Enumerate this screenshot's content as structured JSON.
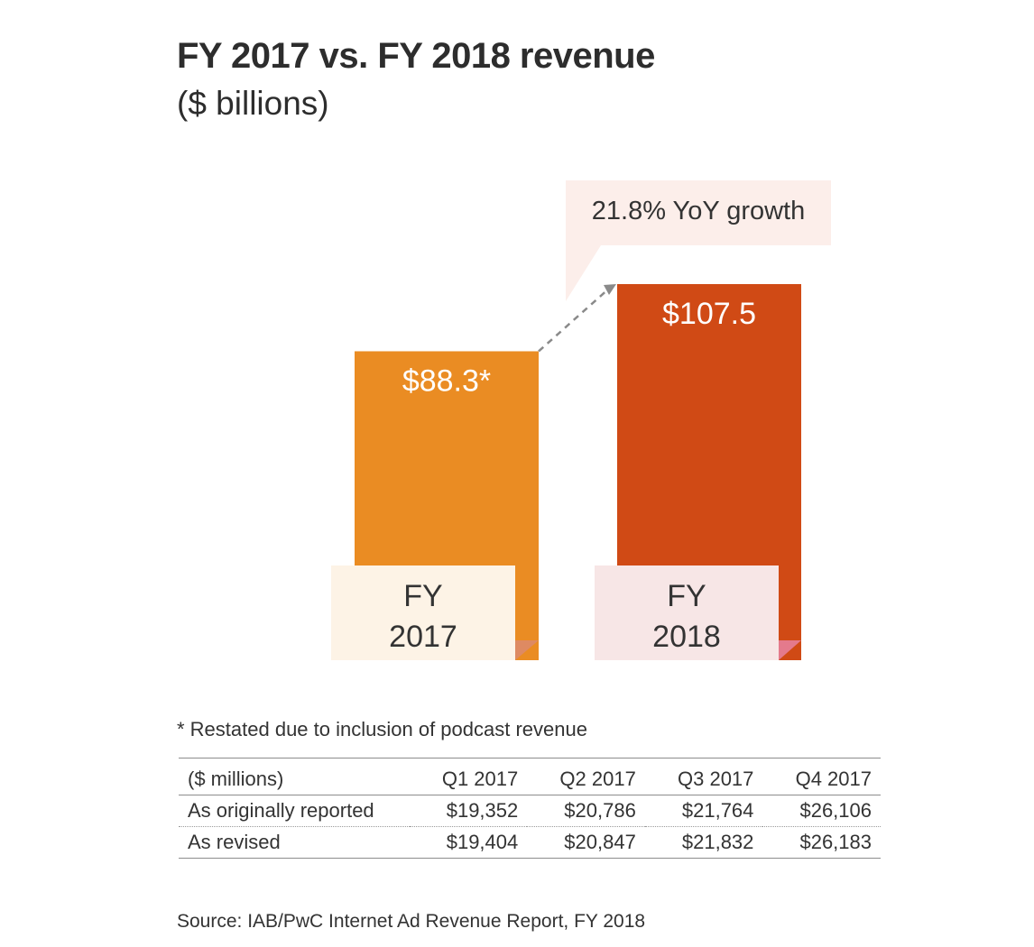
{
  "chart_data": {
    "type": "bar",
    "title": "FY 2017 vs. FY 2018 revenue",
    "subtitle": "($ billions)",
    "categories": [
      {
        "line1": "FY",
        "line2": "2017"
      },
      {
        "line1": "FY",
        "line2": "2018"
      }
    ],
    "values": [
      88.3,
      107.5
    ],
    "value_labels": [
      "$88.3*",
      "$107.5"
    ],
    "colors": [
      "#ea8c23",
      "#d04a15"
    ],
    "label_box_colors": [
      "#fdf3e6",
      "#f7e6e6"
    ],
    "corner_colors": [
      "#de8a62",
      "#e47a8c"
    ],
    "annotation": {
      "text": "21.8% YoY growth",
      "background": "#fceeea"
    },
    "ylim": [
      0,
      120
    ],
    "grid": false,
    "legend": false
  },
  "footnote": "* Restated due to inclusion of podcast revenue",
  "table": {
    "header": [
      "($ millions)",
      "Q1 2017",
      "Q2 2017",
      "Q3 2017",
      "Q4 2017"
    ],
    "rows": [
      {
        "label": "As originally reported",
        "values": [
          "$19,352",
          "$20,786",
          "$21,764",
          "$26,106"
        ]
      },
      {
        "label": "As revised",
        "values": [
          "$19,404",
          "$20,847",
          "$21,832",
          "$26,183"
        ]
      }
    ]
  },
  "source": "Source: IAB/PwC Internet Ad Revenue Report, FY 2018"
}
